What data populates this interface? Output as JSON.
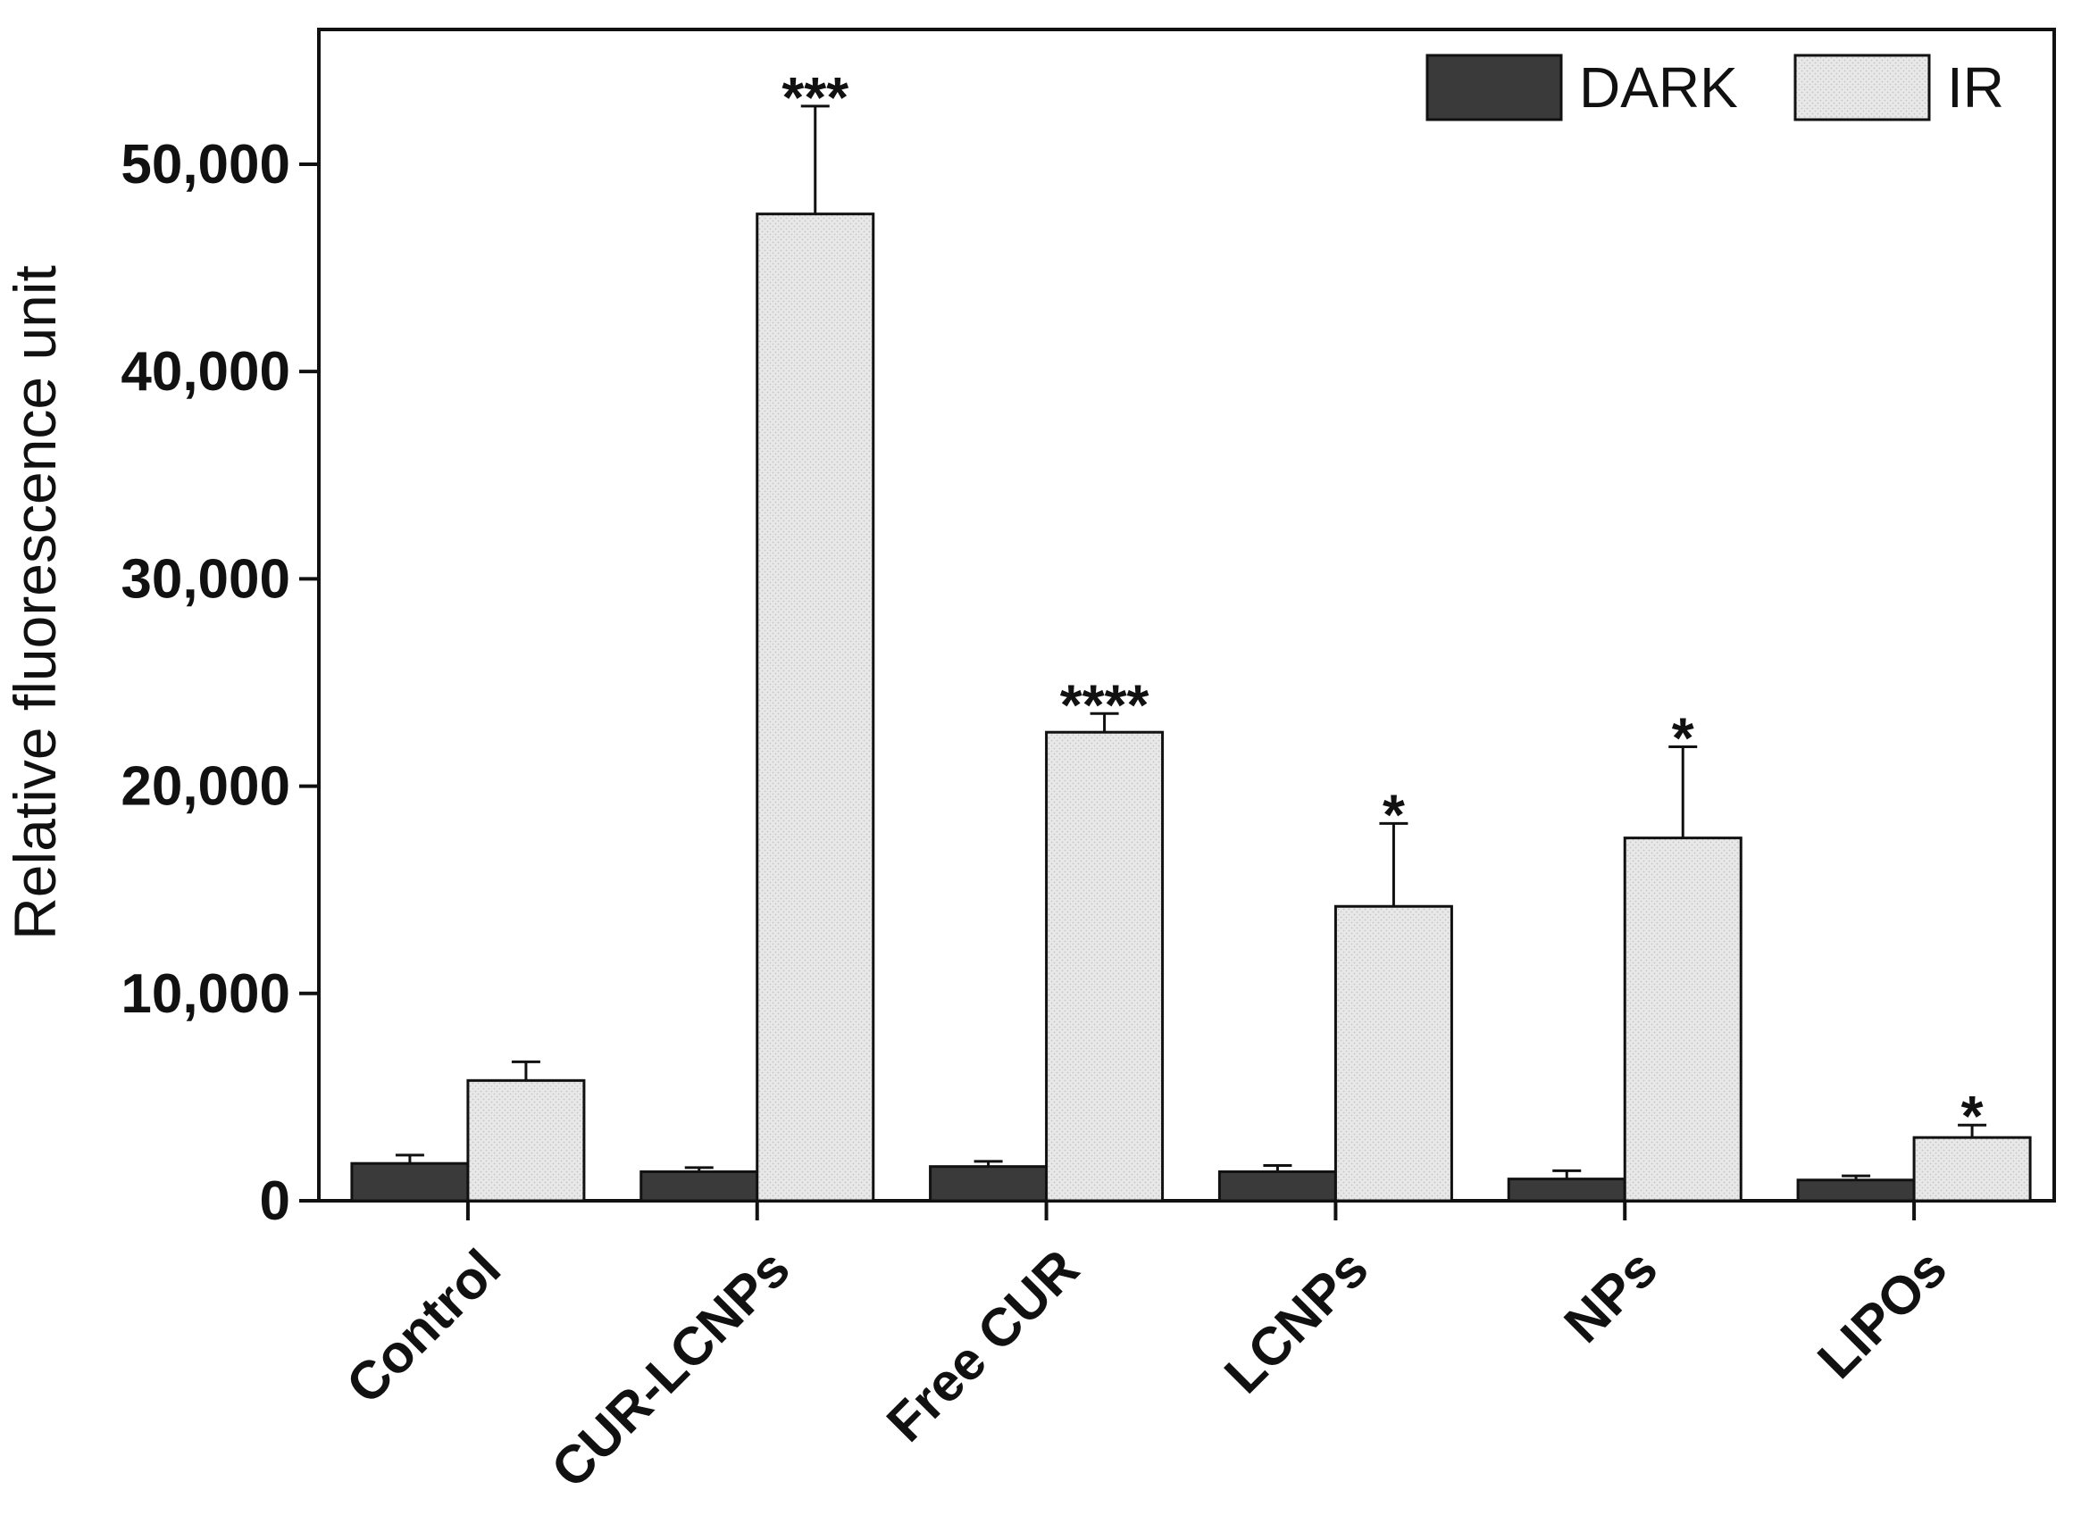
{
  "chart_data": {
    "type": "bar",
    "ylabel": "Relative fluorescence unit",
    "xlabel": "",
    "ylim": [
      0,
      56500
    ],
    "yticks": [
      0,
      10000,
      20000,
      30000,
      40000,
      50000
    ],
    "ytick_labels": [
      "0",
      "10,000",
      "20,000",
      "30,000",
      "40,000",
      "50,000"
    ],
    "categories": [
      "Control",
      "CUR-LCNPs",
      "Free CUR",
      "LCNPs",
      "NPs",
      "LIPOs"
    ],
    "series": [
      {
        "name": "DARK",
        "color": "#3a3a3a",
        "values": [
          1800,
          1400,
          1650,
          1400,
          1050,
          1000
        ],
        "errors": [
          400,
          200,
          250,
          300,
          400,
          200
        ],
        "annotations": [
          "",
          "",
          "",
          "",
          "",
          ""
        ]
      },
      {
        "name": "IR",
        "color": "#e6e6e6",
        "values": [
          5800,
          47600,
          22600,
          14200,
          17500,
          3050
        ],
        "errors": [
          900,
          5200,
          900,
          4000,
          4400,
          600
        ],
        "annotations": [
          "",
          "***",
          "****",
          "*",
          "*",
          "*"
        ]
      }
    ],
    "legend_position": "top-right",
    "grid": false
  }
}
